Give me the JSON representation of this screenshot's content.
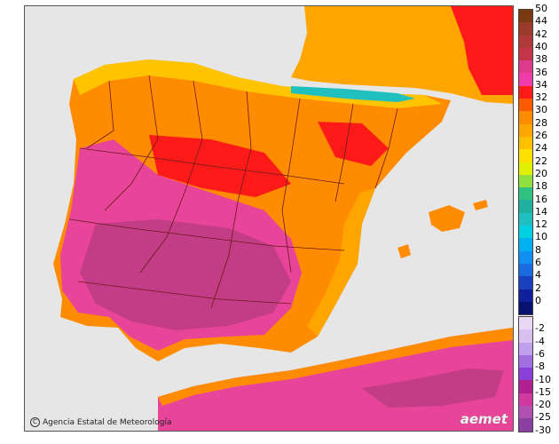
{
  "credit": {
    "copyright_symbol": "C",
    "text": "Agencia Estatal de Meteorología"
  },
  "logo": {
    "text": "aemet"
  },
  "legend": {
    "upper": [
      {
        "label": "50",
        "color": "#7a3a10"
      },
      {
        "label": "44",
        "color": "#9a3a2a"
      },
      {
        "label": "42",
        "color": "#b03a3a"
      },
      {
        "label": "40",
        "color": "#c4354a"
      },
      {
        "label": "38",
        "color": "#dc3c8c"
      },
      {
        "label": "36",
        "color": "#f03ca8"
      },
      {
        "label": "34",
        "color": "#ff1a1a"
      },
      {
        "label": "32",
        "color": "#ff5a00"
      },
      {
        "label": "30",
        "color": "#ff8c00"
      },
      {
        "label": "28",
        "color": "#ffa500"
      },
      {
        "label": "26",
        "color": "#ffc000"
      },
      {
        "label": "24",
        "color": "#ffe000"
      },
      {
        "label": "22",
        "color": "#e0f000"
      },
      {
        "label": "20",
        "color": "#90e040"
      },
      {
        "label": "18",
        "color": "#30c080"
      },
      {
        "label": "16",
        "color": "#20b0a0"
      },
      {
        "label": "14",
        "color": "#20c0c0"
      },
      {
        "label": "12",
        "color": "#00d0e0"
      },
      {
        "label": "10",
        "color": "#00b0f0"
      },
      {
        "label": "8",
        "color": "#1090f0"
      },
      {
        "label": "6",
        "color": "#1a6ae0"
      },
      {
        "label": "4",
        "color": "#1a40c0"
      },
      {
        "label": "2",
        "color": "#10209a"
      },
      {
        "label": "0",
        "color": "#081070"
      }
    ],
    "lower": [
      {
        "label": "-2",
        "color": "#e8d8f4"
      },
      {
        "label": "-4",
        "color": "#d8c0f0"
      },
      {
        "label": "-6",
        "color": "#c0a0ec"
      },
      {
        "label": "-8",
        "color": "#a070e0"
      },
      {
        "label": "-10",
        "color": "#8a40d8"
      },
      {
        "label": "-15",
        "color": "#b02090"
      },
      {
        "label": "-20",
        "color": "#d03aa0"
      },
      {
        "label": "-25",
        "color": "#b050b0"
      },
      {
        "label": "-30",
        "color": "#8a40a0"
      }
    ]
  },
  "map_colors": {
    "sea": "#e6e6e6",
    "land_hot": "#e8449a",
    "land_very_hot": "#c23c86",
    "land_warm": "#ff8c00",
    "land_orange": "#ffa500",
    "land_red": "#ff2a10",
    "land_yellow": "#ffc400",
    "snow_peaks": "#20c0c0",
    "borders": "#6a1a1a"
  }
}
